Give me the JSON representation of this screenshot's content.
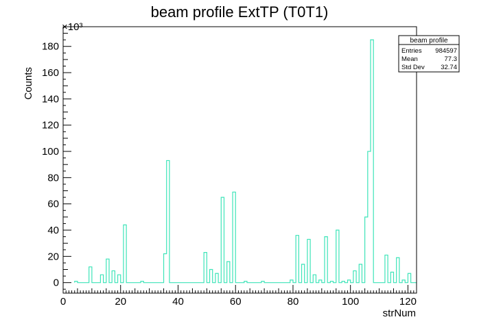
{
  "chart_data": {
    "type": "bar",
    "style": "step-histogram",
    "title": "beam profile ExtTP (T0T1)",
    "xlabel": "strNum",
    "ylabel": "Counts",
    "yexponent": "×10³",
    "xlim": [
      0,
      123
    ],
    "ylim": [
      -8,
      195
    ],
    "xticks": [
      0,
      20,
      40,
      60,
      80,
      100,
      120
    ],
    "yticks": [
      0,
      20,
      40,
      60,
      80,
      100,
      120,
      140,
      160,
      180
    ],
    "grid": false,
    "line_color": "#3ce4b8",
    "bin_start": 4,
    "bin_width": 1,
    "values": [
      1,
      0,
      0,
      0,
      0,
      12,
      0,
      0,
      0,
      6,
      0,
      18,
      0,
      9,
      0,
      6,
      0,
      44,
      0,
      0,
      0,
      0,
      0,
      1,
      0,
      0,
      0,
      0,
      0,
      0,
      0,
      22,
      93,
      0,
      0,
      0,
      0,
      0,
      0,
      0,
      0,
      0,
      0,
      0,
      0,
      23,
      0,
      10,
      0,
      7,
      0,
      65,
      0,
      16,
      0,
      69,
      0,
      0,
      0,
      1,
      0,
      0,
      0,
      0,
      0,
      1,
      0,
      0,
      0,
      0,
      0,
      0,
      0,
      0,
      0,
      2,
      0,
      36,
      0,
      14,
      0,
      33,
      0,
      6,
      0,
      2,
      0,
      35,
      0,
      1,
      0,
      40,
      0,
      1,
      0,
      2,
      0,
      9,
      0,
      14,
      0,
      50,
      100,
      185,
      0,
      0,
      0,
      0,
      21,
      0,
      8,
      0,
      19,
      0,
      2,
      0,
      7,
      0,
      0
    ],
    "stats_box": {
      "title": "beam profile",
      "rows": [
        {
          "label": "Entries",
          "value": "984597"
        },
        {
          "label": "Mean",
          "value": "77.3"
        },
        {
          "label": "Std Dev",
          "value": "32.74"
        }
      ],
      "placement": "top-right"
    }
  }
}
